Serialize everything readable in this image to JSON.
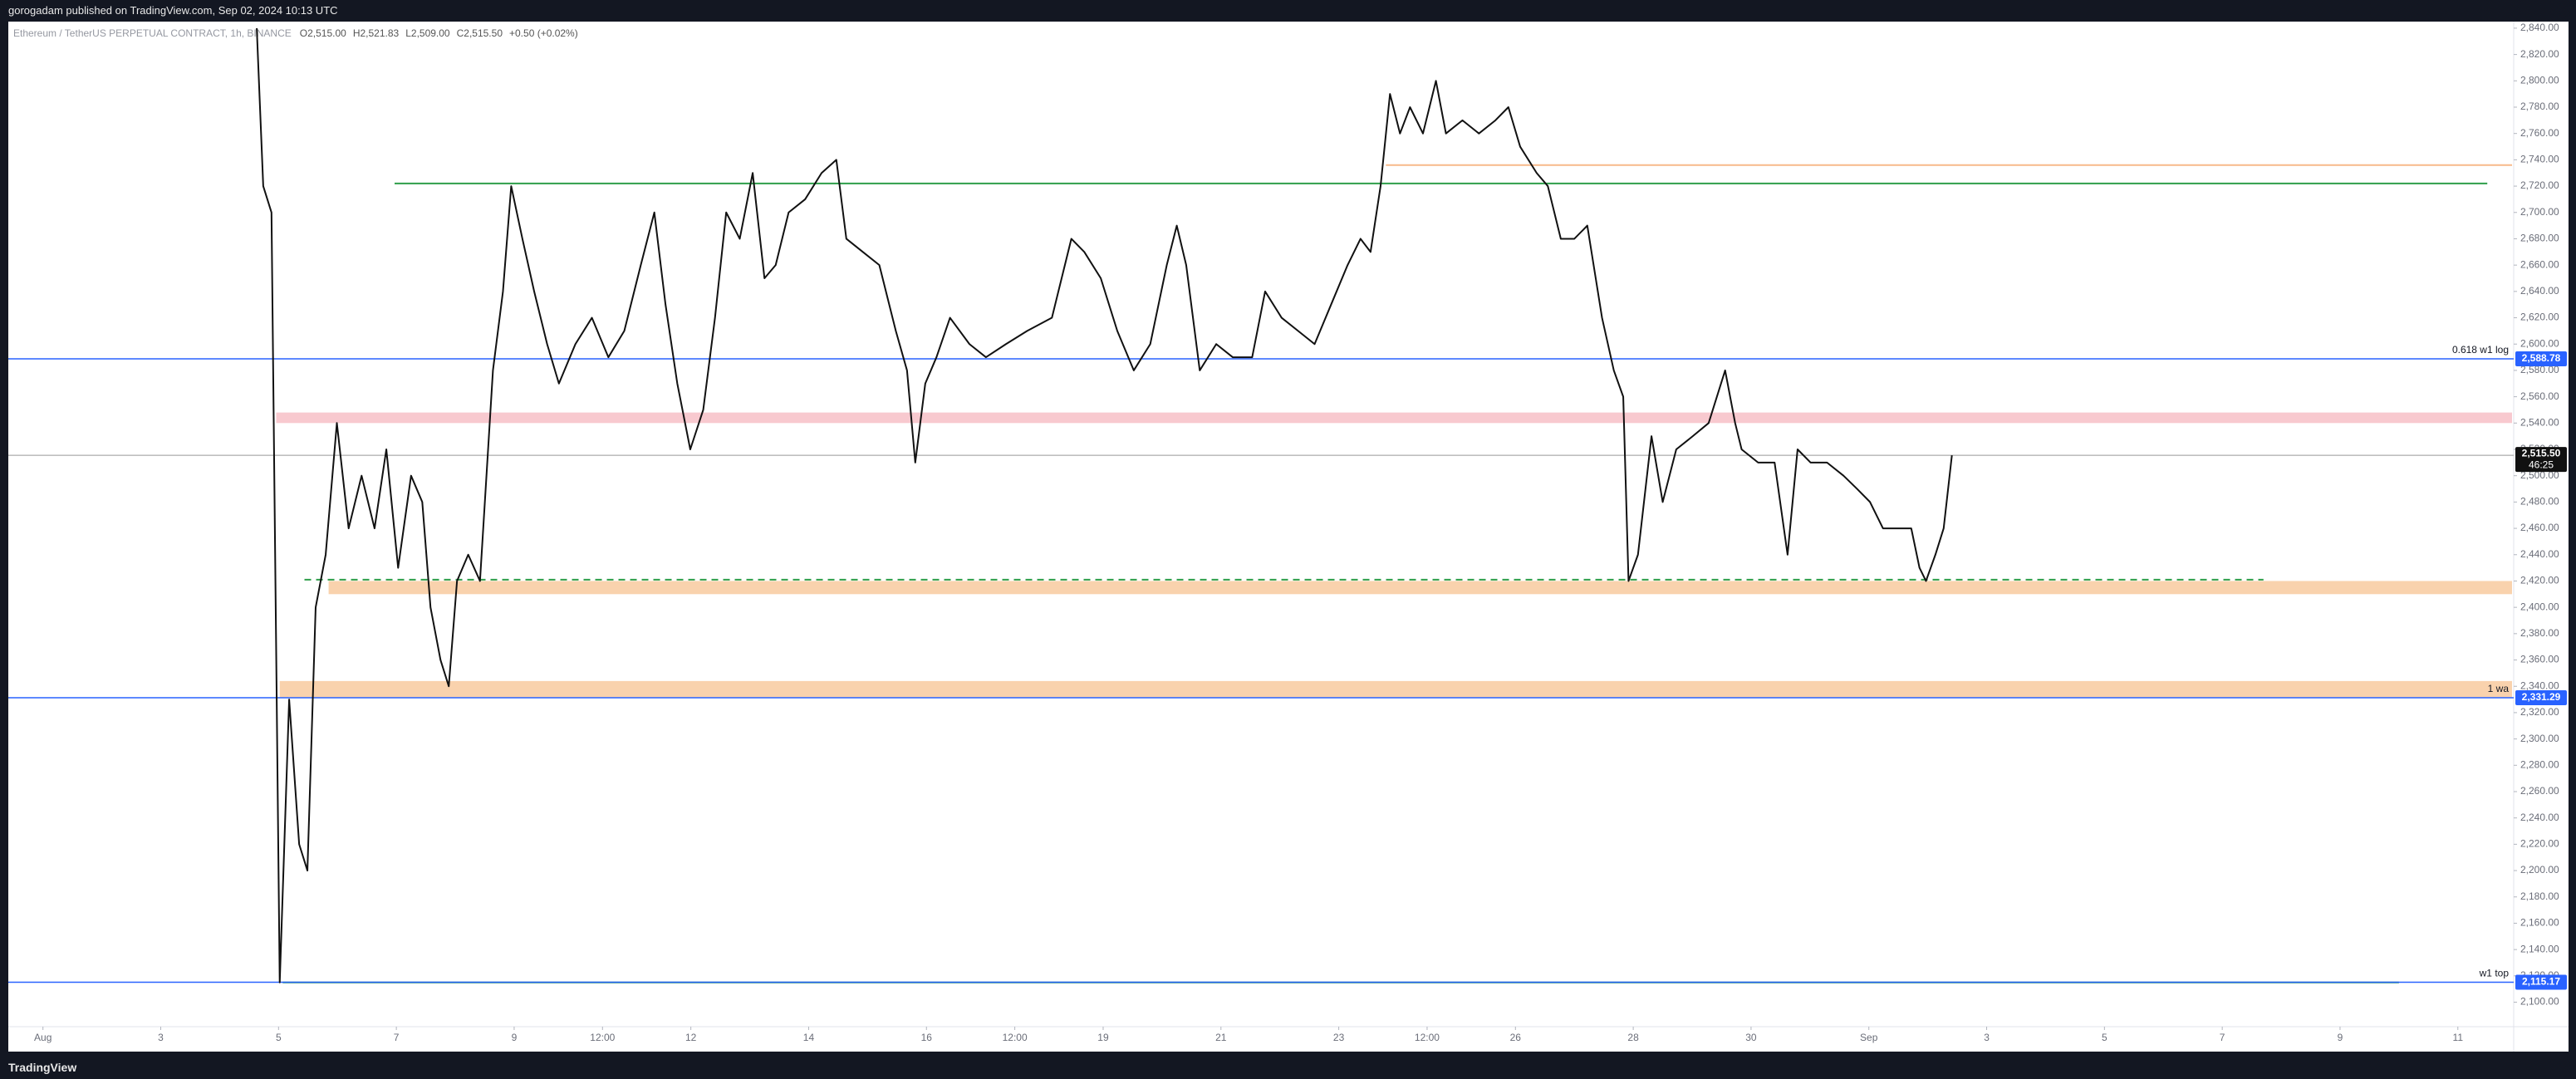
{
  "header": {
    "publisher": "gorogadam published on TradingView.com, Sep 02, 2024 10:13 UTC"
  },
  "footer": {
    "brand": "TradingView"
  },
  "chart_data": {
    "type": "line",
    "symbol": "Ethereum / TetherUS PERPETUAL CONTRACT, 1h, BINANCE",
    "ohlc": [
      "O2,515.00",
      "H2,521.83",
      "L2,509.00",
      "C2,515.50",
      "+0.50 (+0.02%)"
    ],
    "xlim": [
      -0.56,
      41.92
    ],
    "xticks": [
      {
        "value": 0,
        "label": "Aug"
      },
      {
        "value": 2,
        "label": "3"
      },
      {
        "value": 4,
        "label": "5"
      },
      {
        "value": 6,
        "label": "7"
      },
      {
        "value": 8,
        "label": "9"
      },
      {
        "value": 9.5,
        "label": "12:00"
      },
      {
        "value": 11,
        "label": "12"
      },
      {
        "value": 13,
        "label": "14"
      },
      {
        "value": 15,
        "label": "16"
      },
      {
        "value": 16.5,
        "label": "12:00"
      },
      {
        "value": 18,
        "label": "19"
      },
      {
        "value": 20,
        "label": "21"
      },
      {
        "value": 22,
        "label": "23"
      },
      {
        "value": 23.5,
        "label": "12:00"
      },
      {
        "value": 25,
        "label": "26"
      },
      {
        "value": 27,
        "label": "28"
      },
      {
        "value": 29,
        "label": "30"
      },
      {
        "value": 31,
        "label": "Sep"
      },
      {
        "value": 33,
        "label": "3"
      },
      {
        "value": 35,
        "label": "5"
      },
      {
        "value": 37,
        "label": "7"
      },
      {
        "value": 39,
        "label": "9"
      },
      {
        "value": 41,
        "label": "11"
      }
    ],
    "ylim": [
      2065,
      2845
    ],
    "yticks": [
      {
        "value": 2100,
        "label": "2,100.00"
      },
      {
        "value": 2120,
        "label": "2,120.00"
      },
      {
        "value": 2140,
        "label": "2,140.00"
      },
      {
        "value": 2160,
        "label": "2,160.00"
      },
      {
        "value": 2180,
        "label": "2,180.00"
      },
      {
        "value": 2200,
        "label": "2,200.00"
      },
      {
        "value": 2220,
        "label": "2,220.00"
      },
      {
        "value": 2240,
        "label": "2,240.00"
      },
      {
        "value": 2260,
        "label": "2,260.00"
      },
      {
        "value": 2280,
        "label": "2,280.00"
      },
      {
        "value": 2300,
        "label": "2,300.00"
      },
      {
        "value": 2320,
        "label": "2,320.00"
      },
      {
        "value": 2340,
        "label": "2,340.00"
      },
      {
        "value": 2360,
        "label": "2,360.00"
      },
      {
        "value": 2380,
        "label": "2,380.00"
      },
      {
        "value": 2400,
        "label": "2,400.00"
      },
      {
        "value": 2420,
        "label": "2,420.00"
      },
      {
        "value": 2440,
        "label": "2,440.00"
      },
      {
        "value": 2460,
        "label": "2,460.00"
      },
      {
        "value": 2480,
        "label": "2,480.00"
      },
      {
        "value": 2500,
        "label": "2,500.00"
      },
      {
        "value": 2520,
        "label": "2,520.00"
      },
      {
        "value": 2540,
        "label": "2,540.00"
      },
      {
        "value": 2560,
        "label": "2,560.00"
      },
      {
        "value": 2580,
        "label": "2,580.00"
      },
      {
        "value": 2600,
        "label": "2,600.00"
      },
      {
        "value": 2620,
        "label": "2,620.00"
      },
      {
        "value": 2640,
        "label": "2,640.00"
      },
      {
        "value": 2660,
        "label": "2,660.00"
      },
      {
        "value": 2680,
        "label": "2,680.00"
      },
      {
        "value": 2700,
        "label": "2,700.00"
      },
      {
        "value": 2720,
        "label": "2,720.00"
      },
      {
        "value": 2740,
        "label": "2,740.00"
      },
      {
        "value": 2760,
        "label": "2,760.00"
      },
      {
        "value": 2780,
        "label": "2,780.00"
      },
      {
        "value": 2800,
        "label": "2,800.00"
      },
      {
        "value": 2820,
        "label": "2,820.00"
      },
      {
        "value": 2840,
        "label": "2,840.00"
      }
    ],
    "series": [
      {
        "color": "#111111",
        "x": [
          3.63,
          3.74,
          3.88,
          4.02,
          4.18,
          4.35,
          4.49,
          4.63,
          4.8,
          4.99,
          5.19,
          5.41,
          5.63,
          5.83,
          6.03,
          6.25,
          6.44,
          6.58,
          6.75,
          6.89,
          7.03,
          7.22,
          7.42,
          7.64,
          7.81,
          7.95,
          8.14,
          8.34,
          8.56,
          8.76,
          9.04,
          9.32,
          9.6,
          9.87,
          10.15,
          10.38,
          10.57,
          10.77,
          10.99,
          11.21,
          11.41,
          11.6,
          11.83,
          12.05,
          12.25,
          12.44,
          12.66,
          12.94,
          13.22,
          13.47,
          13.64,
          13.92,
          14.2,
          14.48,
          14.67,
          14.81,
          14.98,
          15.17,
          15.4,
          15.73,
          16.01,
          16.35,
          16.71,
          17.13,
          17.46,
          17.68,
          17.96,
          18.24,
          18.52,
          18.8,
          19.08,
          19.25,
          19.41,
          19.64,
          19.92,
          20.2,
          20.53,
          20.75,
          21.03,
          21.31,
          21.59,
          21.87,
          22.15,
          22.37,
          22.54,
          22.71,
          22.87,
          23.04,
          23.21,
          23.43,
          23.65,
          23.82,
          24.1,
          24.38,
          24.66,
          24.88,
          25.08,
          25.36,
          25.55,
          25.77,
          26.0,
          26.22,
          26.47,
          26.67,
          26.83,
          26.92,
          27.08,
          27.31,
          27.5,
          27.73,
          28.01,
          28.28,
          28.56,
          28.73,
          28.84,
          29.12,
          29.4,
          29.62,
          29.79,
          30.01,
          30.29,
          30.57,
          30.8,
          31.02,
          31.24,
          31.52,
          31.72,
          31.86,
          31.97,
          32.13,
          32.27,
          32.41
        ],
        "values": [
          2840,
          2720,
          2700,
          2115,
          2330,
          2220,
          2200,
          2400,
          2440,
          2540,
          2460,
          2500,
          2460,
          2520,
          2430,
          2500,
          2480,
          2400,
          2360,
          2340,
          2420,
          2440,
          2420,
          2580,
          2640,
          2720,
          2680,
          2640,
          2600,
          2570,
          2600,
          2620,
          2590,
          2610,
          2660,
          2700,
          2630,
          2570,
          2520,
          2550,
          2620,
          2700,
          2680,
          2730,
          2650,
          2660,
          2700,
          2710,
          2730,
          2740,
          2680,
          2670,
          2660,
          2610,
          2580,
          2510,
          2570,
          2590,
          2620,
          2600,
          2590,
          2600,
          2610,
          2620,
          2680,
          2670,
          2650,
          2610,
          2580,
          2600,
          2660,
          2690,
          2660,
          2580,
          2600,
          2590,
          2590,
          2640,
          2620,
          2610,
          2600,
          2630,
          2660,
          2680,
          2670,
          2720,
          2790,
          2760,
          2780,
          2760,
          2800,
          2760,
          2770,
          2760,
          2770,
          2780,
          2750,
          2730,
          2720,
          2680,
          2680,
          2690,
          2620,
          2580,
          2560,
          2420,
          2440,
          2530,
          2480,
          2520,
          2530,
          2540,
          2580,
          2540,
          2520,
          2510,
          2510,
          2440,
          2520,
          2510,
          2510,
          2500,
          2490,
          2480,
          2460,
          2460,
          2460,
          2430,
          2420,
          2440,
          2460,
          2515.5
        ]
      }
    ],
    "price_lines": [
      {
        "value": 2588.78,
        "label": "2,588.78",
        "note": "0.618 w1 log",
        "color": "#2962ff"
      },
      {
        "value": 2331.29,
        "label": "2,331.29",
        "note": "1 wa",
        "color": "#2962ff"
      },
      {
        "value": 2115.17,
        "label": "2,115.17",
        "note": "w1 top",
        "color": "#2962ff"
      }
    ],
    "last_price": {
      "value": 2515.5,
      "label": "2,515.50",
      "countdown": "46:25",
      "color": "#111111"
    },
    "bands": [
      {
        "range": [
          2540,
          2548
        ],
        "x_range": [
          3.96,
          41.92
        ],
        "color": "#f8c9cf"
      },
      {
        "range": [
          2410,
          2420
        ],
        "x_range": [
          4.85,
          41.92
        ],
        "color": "#f9d2ad"
      },
      {
        "range": [
          2331,
          2344
        ],
        "x_range": [
          4.02,
          41.92
        ],
        "color": "#f9d2ad"
      }
    ],
    "levels": [
      {
        "value": 2722,
        "x_range": [
          5.97,
          41.5
        ],
        "color": "#2e9e4a",
        "style": "solid"
      },
      {
        "value": 2736,
        "x_range": [
          22.8,
          41.92
        ],
        "color": "#f7b98a",
        "style": "solid"
      },
      {
        "value": 2421,
        "x_range": [
          4.44,
          37.7
        ],
        "color": "#2e9e4a",
        "style": "dashed"
      },
      {
        "value": 2115,
        "x_range": [
          4.07,
          40.0
        ],
        "color": "#2e9e4a",
        "style": "solid"
      }
    ]
  }
}
